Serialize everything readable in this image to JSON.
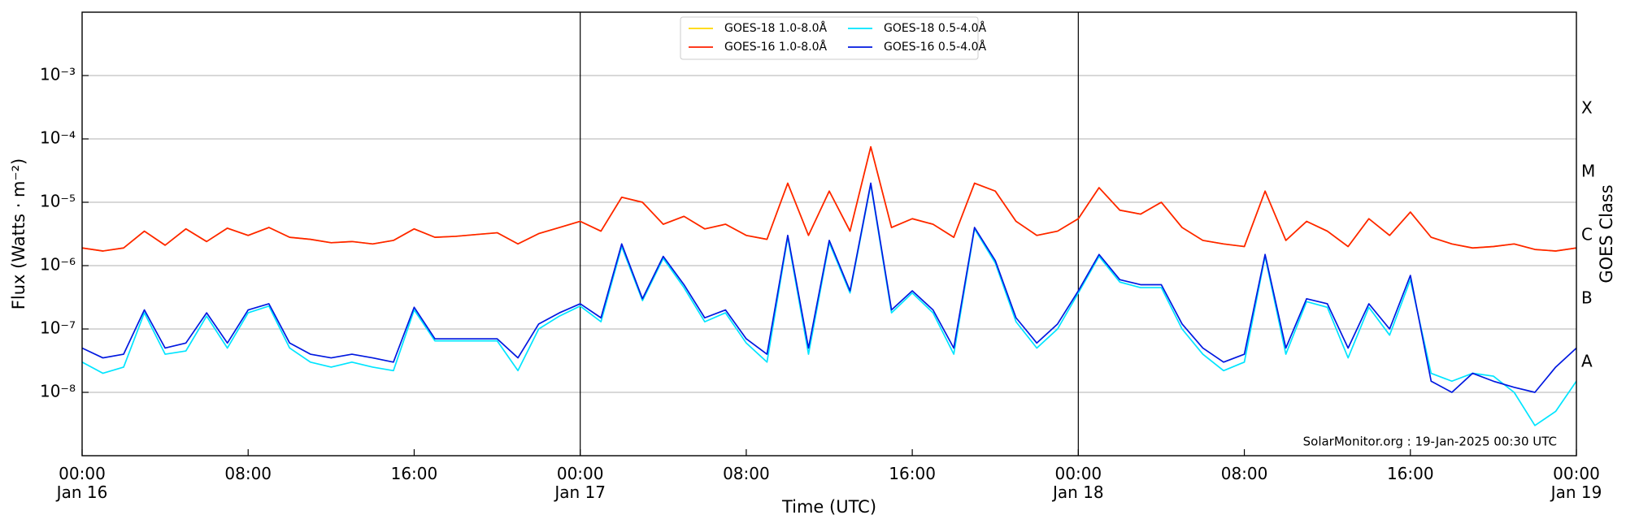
{
  "chart_data": {
    "type": "line",
    "x_label": "Time (UTC)",
    "y_label": "Flux (Watts · m⁻²)",
    "y2_label": "GOES Class",
    "annotation": "SolarMonitor.org : 19-Jan-2025 00:30 UTC",
    "log_y": true,
    "grid": true,
    "legend": "top",
    "xlim": [
      0,
      72
    ],
    "xticks": [
      {
        "value": 0,
        "label": "00:00\nJan 16"
      },
      {
        "value": 8,
        "label": "08:00"
      },
      {
        "value": 16,
        "label": "16:00"
      },
      {
        "value": 24,
        "label": "00:00\nJan 17"
      },
      {
        "value": 32,
        "label": "08:00"
      },
      {
        "value": 40,
        "label": "16:00"
      },
      {
        "value": 48,
        "label": "00:00\nJan 18"
      },
      {
        "value": 56,
        "label": "08:00"
      },
      {
        "value": 64,
        "label": "16:00"
      },
      {
        "value": 72,
        "label": "00:00\nJan 19"
      }
    ],
    "day_lines": [
      24,
      48
    ],
    "ylim": [
      1e-09,
      0.01
    ],
    "yticks": [
      {
        "value": 1e-08,
        "label": "10⁻⁸"
      },
      {
        "value": 1e-07,
        "label": "10⁻⁷"
      },
      {
        "value": 1e-06,
        "label": "10⁻⁶"
      },
      {
        "value": 1e-05,
        "label": "10⁻⁵"
      },
      {
        "value": 0.0001,
        "label": "10⁻⁴"
      },
      {
        "value": 0.001,
        "label": "10⁻³"
      }
    ],
    "y2lim": [
      1e-09,
      0.01
    ],
    "y2ticks": [
      {
        "value": 3e-08,
        "label": "A"
      },
      {
        "value": 3e-07,
        "label": "B"
      },
      {
        "value": 3e-06,
        "label": "C"
      },
      {
        "value": 3e-05,
        "label": "M"
      },
      {
        "value": 0.0003,
        "label": "X"
      }
    ],
    "x": [
      0,
      1,
      2,
      3,
      4,
      5,
      6,
      7,
      8,
      9,
      10,
      11,
      12,
      13,
      14,
      15,
      16,
      17,
      18,
      19,
      20,
      21,
      22,
      23,
      24,
      25,
      26,
      27,
      28,
      29,
      30,
      31,
      32,
      33,
      34,
      35,
      36,
      37,
      38,
      39,
      40,
      41,
      42,
      43,
      44,
      45,
      46,
      47,
      48,
      49,
      50,
      51,
      52,
      53,
      54,
      55,
      56,
      57,
      58,
      59,
      60,
      61,
      62,
      63,
      64,
      65,
      66,
      67,
      68,
      69,
      70,
      71,
      72
    ],
    "series": [
      {
        "name": "GOES-18 1.0-8.0Å",
        "color": "#ffd700",
        "values": [
          1.9e-06,
          1.7e-06,
          1.9e-06,
          3.5e-06,
          2.1e-06,
          3.8e-06,
          2.4e-06,
          3.9e-06,
          3e-06,
          4e-06,
          2.8e-06,
          2.6e-06,
          2.3e-06,
          2.4e-06,
          2.2e-06,
          2.5e-06,
          3.8e-06,
          2.8e-06,
          2.9e-06,
          3.1e-06,
          3.3e-06,
          2.2e-06,
          3.2e-06,
          4e-06,
          5e-06,
          3.5e-06,
          1.2e-05,
          1e-05,
          4.5e-06,
          6e-06,
          3.8e-06,
          4.5e-06,
          3e-06,
          2.6e-06,
          2e-05,
          3e-06,
          1.5e-05,
          3.5e-06,
          7.5e-05,
          4e-06,
          5.5e-06,
          4.5e-06,
          2.8e-06,
          2e-05,
          1.5e-05,
          5e-06,
          3e-06,
          3.5e-06,
          5.5e-06,
          1.7e-05,
          7.5e-06,
          6.5e-06,
          1e-05,
          4e-06,
          2.5e-06,
          2.2e-06,
          2e-06,
          1.5e-05,
          2.5e-06,
          5e-06,
          3.5e-06,
          2e-06,
          5.5e-06,
          3e-06,
          7e-06,
          2.8e-06,
          2.2e-06,
          1.9e-06,
          2e-06,
          2.2e-06,
          1.8e-06,
          1.7e-06,
          1.9e-06
        ]
      },
      {
        "name": "GOES-16 1.0-8.0Å",
        "color": "#ff2000",
        "values": [
          1.9e-06,
          1.7e-06,
          1.9e-06,
          3.5e-06,
          2.1e-06,
          3.8e-06,
          2.4e-06,
          3.9e-06,
          3e-06,
          4e-06,
          2.8e-06,
          2.6e-06,
          2.3e-06,
          2.4e-06,
          2.2e-06,
          2.5e-06,
          3.8e-06,
          2.8e-06,
          2.9e-06,
          3.1e-06,
          3.3e-06,
          2.2e-06,
          3.2e-06,
          4e-06,
          5e-06,
          3.5e-06,
          1.2e-05,
          1e-05,
          4.5e-06,
          6e-06,
          3.8e-06,
          4.5e-06,
          3e-06,
          2.6e-06,
          2e-05,
          3e-06,
          1.5e-05,
          3.5e-06,
          7.5e-05,
          4e-06,
          5.5e-06,
          4.5e-06,
          2.8e-06,
          2e-05,
          1.5e-05,
          5e-06,
          3e-06,
          3.5e-06,
          5.5e-06,
          1.7e-05,
          7.5e-06,
          6.5e-06,
          1e-05,
          4e-06,
          2.5e-06,
          2.2e-06,
          2e-06,
          1.5e-05,
          2.5e-06,
          5e-06,
          3.5e-06,
          2e-06,
          5.5e-06,
          3e-06,
          7e-06,
          2.8e-06,
          2.2e-06,
          1.9e-06,
          2e-06,
          2.2e-06,
          1.8e-06,
          1.7e-06,
          1.9e-06
        ]
      },
      {
        "name": "GOES-18 0.5-4.0Å",
        "color": "#00e5ff",
        "values": [
          3e-08,
          2e-08,
          2.5e-08,
          1.8e-07,
          4e-08,
          4.5e-08,
          1.6e-07,
          5e-08,
          1.8e-07,
          2.3e-07,
          5e-08,
          3e-08,
          2.5e-08,
          3e-08,
          2.5e-08,
          2.2e-08,
          2e-07,
          6.5e-08,
          6.5e-08,
          6.5e-08,
          6.5e-08,
          2.2e-08,
          1e-07,
          1.6e-07,
          2.3e-07,
          1.3e-07,
          2e-06,
          2.8e-07,
          1.3e-06,
          4.5e-07,
          1.3e-07,
          1.8e-07,
          6e-08,
          3e-08,
          2.8e-06,
          4e-08,
          2.3e-06,
          3.7e-07,
          1.9e-05,
          1.8e-07,
          3.7e-07,
          1.8e-07,
          4e-08,
          3.8e-06,
          1.1e-06,
          1.3e-07,
          5e-08,
          1e-07,
          3.7e-07,
          1.4e-06,
          5.5e-07,
          4.5e-07,
          4.5e-07,
          1e-07,
          4e-08,
          2.2e-08,
          3e-08,
          1.4e-06,
          4e-08,
          2.7e-07,
          2.2e-07,
          3.5e-08,
          2.2e-07,
          8e-08,
          6e-07,
          2e-08,
          1.5e-08,
          2e-08,
          1.8e-08,
          1e-08,
          3e-09,
          5e-09,
          1.5e-08
        ]
      },
      {
        "name": "GOES-16 0.5-4.0Å",
        "color": "#0018e0",
        "values": [
          5e-08,
          3.5e-08,
          4e-08,
          2e-07,
          5e-08,
          6e-08,
          1.8e-07,
          6e-08,
          2e-07,
          2.5e-07,
          6e-08,
          4e-08,
          3.5e-08,
          4e-08,
          3.5e-08,
          3e-08,
          2.2e-07,
          7e-08,
          7e-08,
          7e-08,
          7e-08,
          3.5e-08,
          1.2e-07,
          1.8e-07,
          2.5e-07,
          1.5e-07,
          2.2e-06,
          3e-07,
          1.4e-06,
          5e-07,
          1.5e-07,
          2e-07,
          7e-08,
          4e-08,
          3e-06,
          5e-08,
          2.5e-06,
          4e-07,
          2e-05,
          2e-07,
          4e-07,
          2e-07,
          5e-08,
          4e-06,
          1.2e-06,
          1.5e-07,
          6e-08,
          1.2e-07,
          4e-07,
          1.5e-06,
          6e-07,
          5e-07,
          5e-07,
          1.2e-07,
          5e-08,
          3e-08,
          4e-08,
          1.5e-06,
          5e-08,
          3e-07,
          2.5e-07,
          5e-08,
          2.5e-07,
          1e-07,
          7e-07,
          1.5e-08,
          1e-08,
          2e-08,
          1.5e-08,
          1.2e-08,
          1e-08,
          2.5e-08,
          5e-08
        ]
      }
    ]
  }
}
